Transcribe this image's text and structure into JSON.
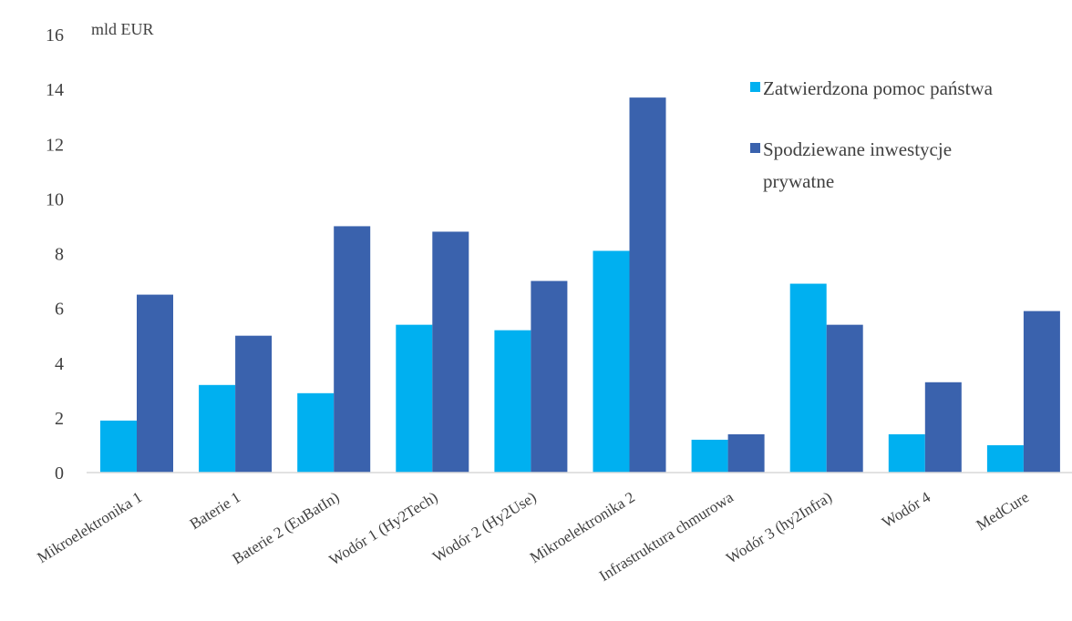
{
  "chart_data": {
    "type": "bar",
    "unit_label": "mld EUR",
    "categories": [
      "Mikroelektronika 1",
      "Baterie 1",
      "Baterie 2 (EuBatIn)",
      "Wodór 1 (Hy2Tech)",
      "Wodór 2 (Hy2Use)",
      "Mikroelektronika 2",
      "Infrastruktura chmurowa",
      "Wodór 3 (hy2Infra)",
      "Wodór 4",
      "MedCure"
    ],
    "series": [
      {
        "name": "Zatwierdzona pomoc państwa",
        "color": "#00b0f0",
        "values": [
          1.9,
          3.2,
          2.9,
          5.4,
          5.2,
          8.1,
          1.2,
          6.9,
          1.4,
          1.0
        ]
      },
      {
        "name": "Spodziewane inwestycje prywatne",
        "legend_lines": [
          "Spodziewane inwestycje",
          "prywatne"
        ],
        "color": "#3a62ad",
        "values": [
          6.5,
          5.0,
          9.0,
          8.8,
          7.0,
          13.7,
          1.4,
          5.4,
          3.3,
          5.9
        ]
      }
    ],
    "yticks": [
      0,
      2,
      4,
      6,
      8,
      10,
      12,
      14,
      16
    ],
    "ylim": [
      0,
      16
    ],
    "grid": false,
    "legend_position": "top-right"
  }
}
